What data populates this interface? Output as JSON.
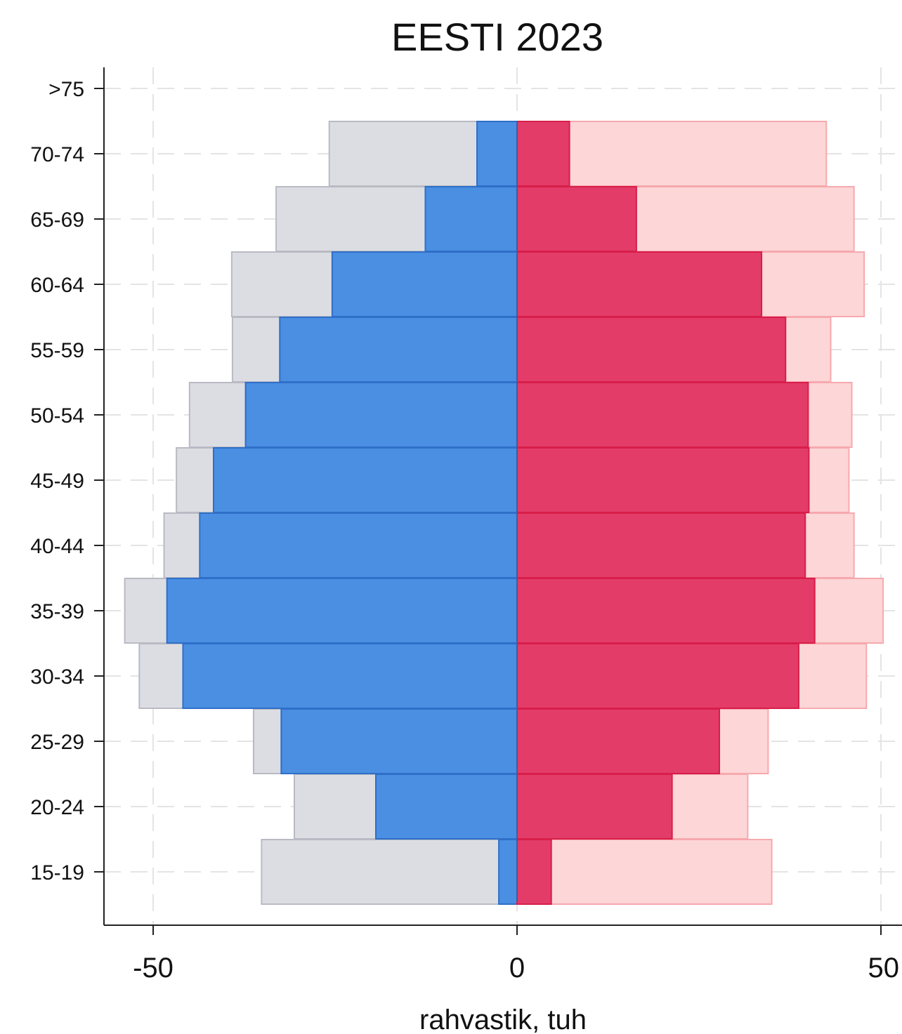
{
  "chart_data": {
    "type": "bar",
    "orientation": "horizontal",
    "title": "EESTI 2023",
    "xlabel": "rahvastik, tuh",
    "ylabel": "",
    "categories": [
      ">75",
      "70-74",
      "65-69",
      "60-64",
      "55-59",
      "50-54",
      "45-49",
      "40-44",
      "35-39",
      "30-34",
      "25-29",
      "20-24",
      "15-19"
    ],
    "xlim": [
      -56.5,
      50
    ],
    "xticks": [
      -50,
      0,
      50
    ],
    "xtick_labels": [
      "-50",
      "0",
      "50"
    ],
    "grid": true,
    "series": [
      {
        "values": [
          null,
          -25.8,
          -33.1,
          -39.2,
          -39.1,
          -45.0,
          -46.8,
          -48.5,
          -53.9,
          -51.9,
          -36.2,
          -30.6,
          -35.1
        ]
      },
      {
        "values": [
          null,
          -5.5,
          -12.6,
          -25.4,
          -32.6,
          -37.3,
          -41.7,
          -43.6,
          -48.1,
          -45.9,
          -32.4,
          -19.4,
          -2.5
        ]
      },
      {
        "values": [
          null,
          42.5,
          46.3,
          47.7,
          43.1,
          46.0,
          45.6,
          46.3,
          50.3,
          48.0,
          34.5,
          31.7,
          35.0
        ]
      },
      {
        "values": [
          null,
          7.2,
          16.4,
          33.6,
          36.9,
          40.0,
          40.1,
          39.6,
          40.9,
          38.7,
          27.8,
          21.3,
          4.7
        ]
      }
    ],
    "colors": {
      "male_total": "#dcdde2",
      "male_total_edge": "#b9bac4",
      "male_employed": "#4a8fe2",
      "male_employed_edge": "#2f6fc8",
      "female_total": "#fdd6d7",
      "female_total_edge": "#f6a9ae",
      "female_employed": "#e33c68",
      "female_employed_edge": "#d81e4a",
      "grid": "#e4e4e4",
      "axis": "#222222"
    }
  }
}
